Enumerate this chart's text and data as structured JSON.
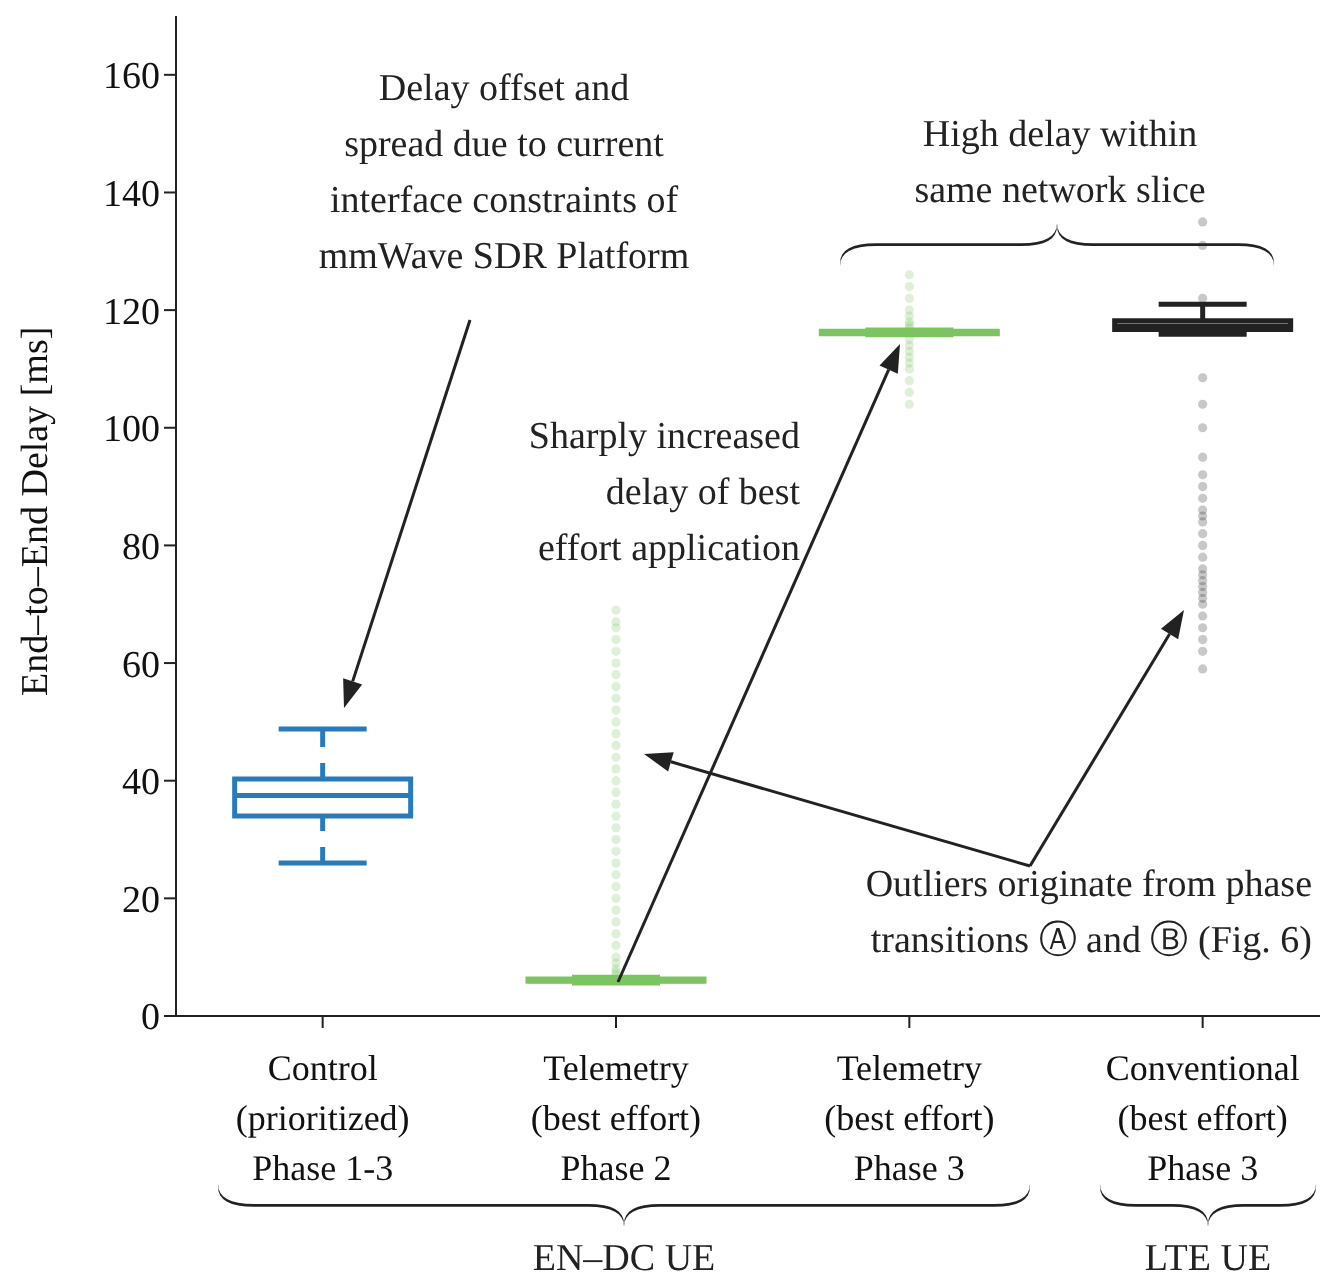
{
  "chart_data": {
    "type": "box",
    "ylabel": "End–to–End Delay [ms]",
    "categories": [
      "Control\n(prioritized)\nPhase 1-3",
      "Telemetry\n(best effort)\nPhase 2",
      "Telemetry\n(best effort)\nPhase 3",
      "Conventional\n(best effort)\nPhase 3"
    ],
    "colors": [
      "#2a7ab9",
      "#7cc462",
      "#7cc462",
      "#222222"
    ],
    "boxes": [
      {
        "low": 26,
        "q1": 34,
        "median": 37.5,
        "q3": 40.3,
        "high": 48.8
      },
      {
        "low": 5.6,
        "q1": 5.9,
        "median": 6,
        "q3": 6.3,
        "high": 6.6,
        "outliers": [
          7,
          7.5,
          8,
          9,
          10,
          12,
          14,
          16,
          18,
          20,
          22,
          24,
          26,
          28,
          30,
          32,
          34,
          36,
          38,
          40,
          42,
          44,
          46,
          48,
          50,
          52,
          54,
          56,
          58,
          60,
          62,
          64,
          66,
          67,
          69
        ]
      },
      {
        "low": 115.8,
        "q1": 116,
        "median": 116.2,
        "q3": 116.4,
        "high": 116.6,
        "outliers": [
          104,
          106,
          108,
          110,
          111,
          112,
          113,
          114,
          115,
          117,
          117.5,
          118,
          119,
          120,
          122,
          124,
          126
        ]
      },
      {
        "low": 115.9,
        "q1": 116.7,
        "median": 117.3,
        "q3": 118.2,
        "high": 121,
        "outliers": [
          59,
          62,
          64,
          66,
          68,
          70,
          71,
          72,
          73,
          74,
          75,
          76,
          78,
          80,
          82,
          84,
          85,
          86,
          88,
          90,
          92,
          95,
          100,
          104,
          108.5,
          122,
          131,
          135
        ]
      }
    ],
    "ylim": [
      0,
      170
    ],
    "yticks": [
      0,
      20,
      40,
      60,
      80,
      100,
      120,
      140,
      160
    ],
    "grid": false,
    "legend": false,
    "annotations": [
      "Delay offset and\nspread due to current\ninterface constraints of\nmmWave SDR Platform",
      "High delay within\nsame network slice",
      "Sharply increased\ndelay of best\neffort application",
      "Outliers originate from phase\ntransitions Ⓐ and Ⓑ (Fig. 6)",
      "EN–DC UE",
      "LTE UE"
    ]
  }
}
